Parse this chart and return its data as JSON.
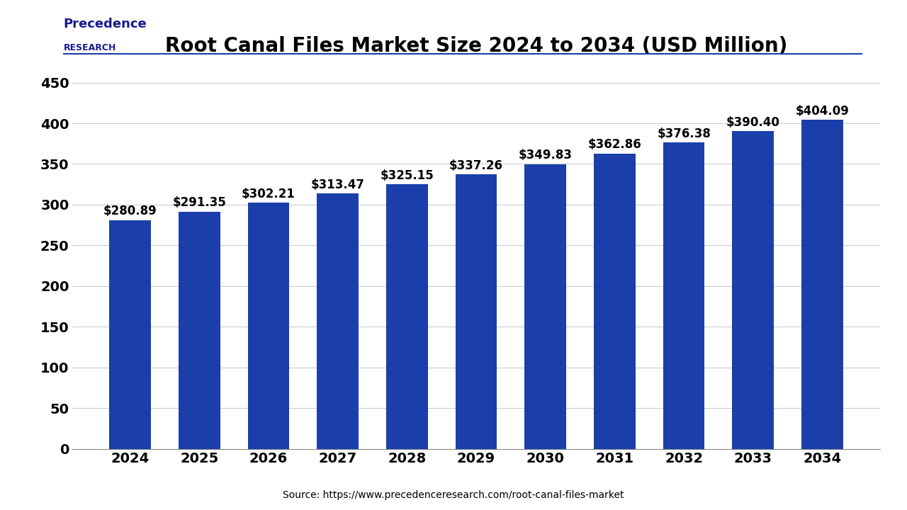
{
  "title": "Root Canal Files Market Size 2024 to 2034 (USD Million)",
  "categories": [
    "2024",
    "2025",
    "2026",
    "2027",
    "2028",
    "2029",
    "2030",
    "2031",
    "2032",
    "2033",
    "2034"
  ],
  "values": [
    280.89,
    291.35,
    302.21,
    313.47,
    325.15,
    337.26,
    349.83,
    362.86,
    376.38,
    390.4,
    404.09
  ],
  "labels": [
    "$280.89",
    "$291.35",
    "$302.21",
    "$313.47",
    "$325.15",
    "$337.26",
    "$349.83",
    "$362.86",
    "$376.38",
    "$390.40",
    "$404.09"
  ],
  "bar_color": "#1a3faa",
  "background_color": "#ffffff",
  "ylim": [
    0,
    470
  ],
  "yticks": [
    0,
    50,
    100,
    150,
    200,
    250,
    300,
    350,
    400,
    450
  ],
  "title_fontsize": 20,
  "tick_fontsize": 14,
  "label_fontsize": 12,
  "source_text": "Source: https://www.precedenceresearch.com/root-canal-files-market",
  "grid_color": "#cccccc",
  "logo_line_color": "#1a3faa",
  "logo_text_color": "#1a1a8c"
}
